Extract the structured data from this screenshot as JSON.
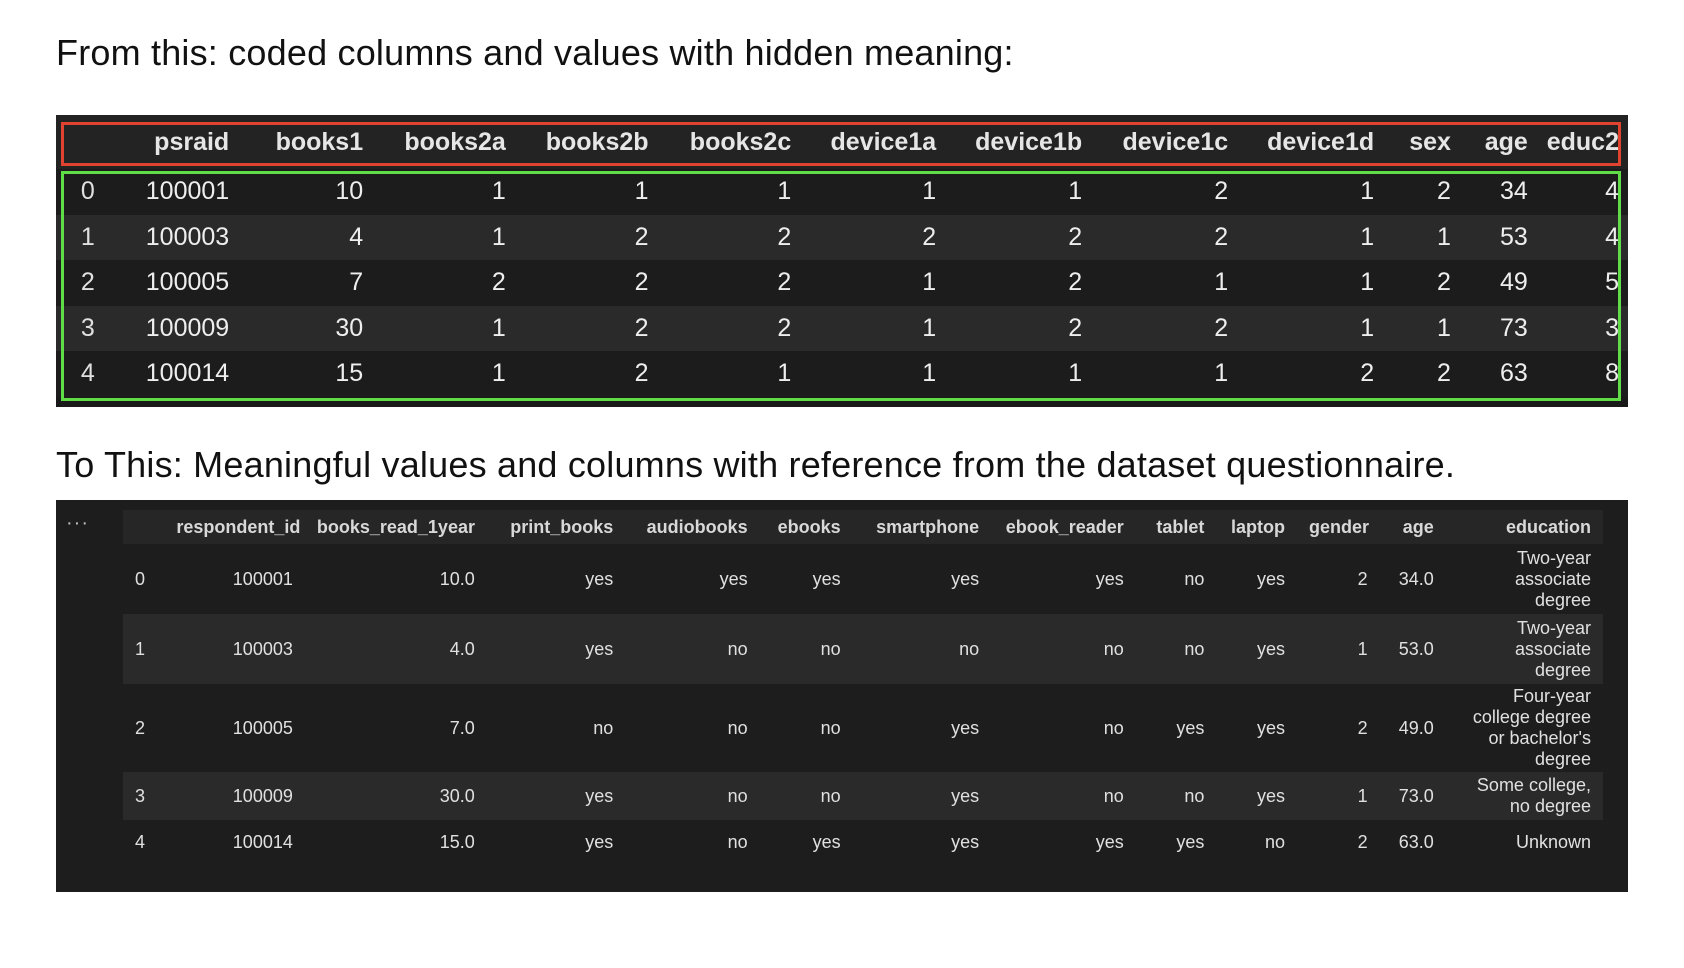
{
  "headings": {
    "from": "From this: coded columns and values with hidden meaning:",
    "to": "To This: Meaningful values and columns with reference from the dataset questionnaire."
  },
  "raw_table": {
    "columns": [
      "",
      "psraid",
      "books1",
      "books2a",
      "books2b",
      "books2c",
      "device1a",
      "device1b",
      "device1c",
      "device1d",
      "sex",
      "age",
      "educ2"
    ],
    "rows": [
      [
        "0",
        "100001",
        "10",
        "1",
        "1",
        "1",
        "1",
        "1",
        "2",
        "1",
        "2",
        "34",
        "4"
      ],
      [
        "1",
        "100003",
        "4",
        "1",
        "2",
        "2",
        "2",
        "2",
        "2",
        "1",
        "1",
        "53",
        "4"
      ],
      [
        "2",
        "100005",
        "7",
        "2",
        "2",
        "2",
        "1",
        "2",
        "1",
        "1",
        "2",
        "49",
        "5"
      ],
      [
        "3",
        "100009",
        "30",
        "1",
        "2",
        "2",
        "1",
        "2",
        "2",
        "1",
        "1",
        "73",
        "3"
      ],
      [
        "4",
        "100014",
        "15",
        "1",
        "2",
        "1",
        "1",
        "1",
        "1",
        "2",
        "2",
        "63",
        "8"
      ]
    ]
  },
  "clean_table": {
    "ellipsis": "···",
    "columns": [
      "",
      "respondent_id",
      "books_read_1year",
      "print_books",
      "audiobooks",
      "ebooks",
      "smartphone",
      "ebook_reader",
      "tablet",
      "laptop",
      "gender",
      "age",
      "education"
    ],
    "rows": [
      [
        "0",
        "100001",
        "10.0",
        "yes",
        "yes",
        "yes",
        "yes",
        "yes",
        "no",
        "yes",
        "2",
        "34.0",
        "Two-year associate degree"
      ],
      [
        "1",
        "100003",
        "4.0",
        "yes",
        "no",
        "no",
        "no",
        "no",
        "no",
        "yes",
        "1",
        "53.0",
        "Two-year associate degree"
      ],
      [
        "2",
        "100005",
        "7.0",
        "no",
        "no",
        "no",
        "yes",
        "no",
        "yes",
        "yes",
        "2",
        "49.0",
        "Four-year college degree or bachelor's degree"
      ],
      [
        "3",
        "100009",
        "30.0",
        "yes",
        "no",
        "no",
        "yes",
        "no",
        "no",
        "yes",
        "1",
        "73.0",
        "Some college, no degree"
      ],
      [
        "4",
        "100014",
        "15.0",
        "yes",
        "no",
        "yes",
        "yes",
        "yes",
        "yes",
        "no",
        "2",
        "63.0",
        "Unknown"
      ]
    ]
  }
}
